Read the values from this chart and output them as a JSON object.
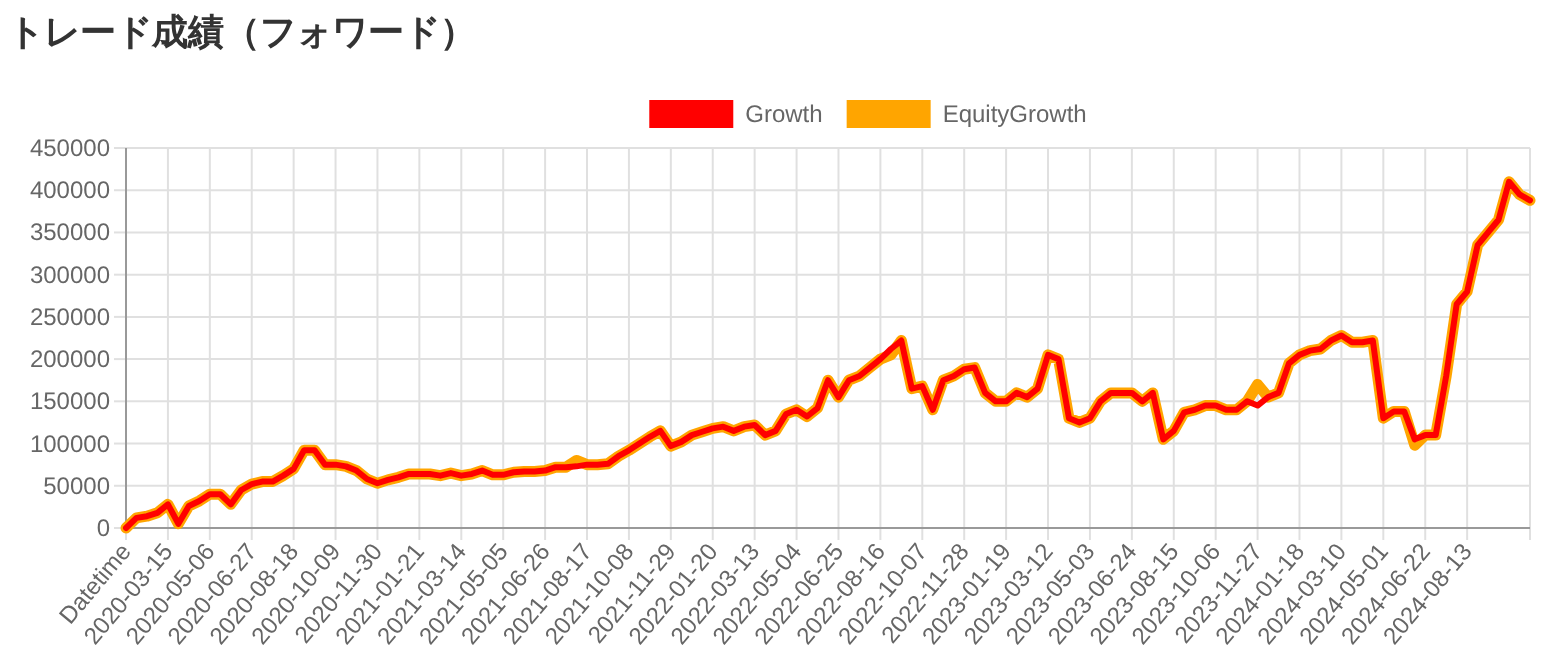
{
  "chart_data": {
    "type": "line",
    "title": "トレード成績（フォワード）",
    "categories": [
      "Datetime",
      null,
      null,
      null,
      "2020-03-15",
      null,
      null,
      null,
      "2020-05-06",
      null,
      null,
      null,
      "2020-06-27",
      null,
      null,
      null,
      "2020-08-18",
      null,
      null,
      null,
      "2020-10-09",
      null,
      null,
      null,
      "2020-11-30",
      null,
      null,
      null,
      "2021-01-21",
      null,
      null,
      null,
      "2021-03-14",
      null,
      null,
      null,
      "2021-05-05",
      null,
      null,
      null,
      "2021-06-26",
      null,
      null,
      null,
      "2021-08-17",
      null,
      null,
      null,
      "2021-10-08",
      null,
      null,
      null,
      "2021-11-29",
      null,
      null,
      null,
      "2022-01-20",
      null,
      null,
      null,
      "2022-03-13",
      null,
      null,
      null,
      "2022-05-04",
      null,
      null,
      null,
      "2022-06-25",
      null,
      null,
      null,
      "2022-08-16",
      null,
      null,
      null,
      "2022-10-07",
      null,
      null,
      null,
      "2022-11-28",
      null,
      null,
      null,
      "2023-01-19",
      null,
      null,
      null,
      "2023-03-12",
      null,
      null,
      null,
      "2023-05-03",
      null,
      null,
      null,
      "2023-06-24",
      null,
      null,
      null,
      "2023-08-15",
      null,
      null,
      null,
      "2023-10-06",
      null,
      null,
      null,
      "2023-11-27",
      null,
      null,
      null,
      "2024-01-18",
      null,
      null,
      null,
      "2024-03-10",
      null,
      null,
      null,
      "2024-05-01",
      null,
      null,
      null,
      "2024-06-22",
      null,
      null,
      null,
      "2024-08-13",
      null,
      null,
      null,
      null,
      null,
      null
    ],
    "series": [
      {
        "name": "EquityGrowth",
        "color": "#ffa500",
        "values": [
          0,
          12000,
          14000,
          18000,
          28000,
          5000,
          26000,
          32000,
          40000,
          40000,
          28000,
          45000,
          52000,
          55000,
          55000,
          62000,
          70000,
          92000,
          92000,
          75000,
          75000,
          73000,
          68000,
          58000,
          53000,
          57000,
          60000,
          64000,
          64000,
          64000,
          62000,
          65000,
          62000,
          64000,
          68000,
          63000,
          63000,
          66000,
          67000,
          67000,
          68000,
          72000,
          72000,
          80000,
          75000,
          75000,
          76000,
          85000,
          92000,
          100000,
          108000,
          115000,
          97000,
          102000,
          110000,
          114000,
          118000,
          120000,
          115000,
          120000,
          122000,
          110000,
          115000,
          135000,
          140000,
          132000,
          142000,
          175000,
          155000,
          175000,
          180000,
          190000,
          200000,
          205000,
          222000,
          165000,
          168000,
          140000,
          175000,
          180000,
          188000,
          190000,
          160000,
          150000,
          150000,
          160000,
          155000,
          165000,
          205000,
          200000,
          130000,
          125000,
          130000,
          150000,
          160000,
          160000,
          160000,
          150000,
          160000,
          105000,
          115000,
          137000,
          140000,
          145000,
          145000,
          140000,
          140000,
          150000,
          170000,
          155000,
          160000,
          195000,
          205000,
          210000,
          212000,
          222000,
          228000,
          220000,
          220000,
          222000,
          130000,
          138000,
          138000,
          98000,
          110000,
          110000,
          180000,
          265000,
          280000,
          335000,
          350000,
          365000,
          410000,
          395000,
          388000
        ]
      },
      {
        "name": "Growth",
        "color": "#ff0000",
        "values": [
          0,
          12000,
          14000,
          18000,
          28000,
          5000,
          26000,
          32000,
          40000,
          40000,
          28000,
          45000,
          52000,
          55000,
          55000,
          62000,
          70000,
          92000,
          92000,
          75000,
          75000,
          73000,
          68000,
          58000,
          53000,
          57000,
          60000,
          64000,
          64000,
          64000,
          62000,
          65000,
          62000,
          64000,
          68000,
          63000,
          63000,
          66000,
          67000,
          67000,
          68000,
          72000,
          72000,
          73000,
          75000,
          75000,
          76000,
          85000,
          92000,
          100000,
          108000,
          115000,
          97000,
          102000,
          110000,
          114000,
          118000,
          120000,
          115000,
          120000,
          122000,
          110000,
          115000,
          135000,
          140000,
          132000,
          142000,
          175000,
          155000,
          175000,
          180000,
          190000,
          200000,
          212000,
          222000,
          165000,
          168000,
          140000,
          175000,
          180000,
          188000,
          190000,
          160000,
          150000,
          150000,
          160000,
          155000,
          165000,
          205000,
          200000,
          130000,
          125000,
          130000,
          150000,
          160000,
          160000,
          160000,
          150000,
          160000,
          105000,
          115000,
          137000,
          140000,
          145000,
          145000,
          140000,
          140000,
          150000,
          145000,
          155000,
          160000,
          195000,
          205000,
          210000,
          212000,
          222000,
          228000,
          220000,
          220000,
          222000,
          130000,
          138000,
          138000,
          105000,
          110000,
          110000,
          180000,
          265000,
          280000,
          335000,
          350000,
          365000,
          410000,
          395000,
          388000
        ]
      }
    ],
    "ylim": [
      0,
      450000
    ],
    "yticks": [
      0,
      50000,
      100000,
      150000,
      200000,
      250000,
      300000,
      350000,
      400000,
      450000
    ],
    "grid": true,
    "legend": "top"
  }
}
